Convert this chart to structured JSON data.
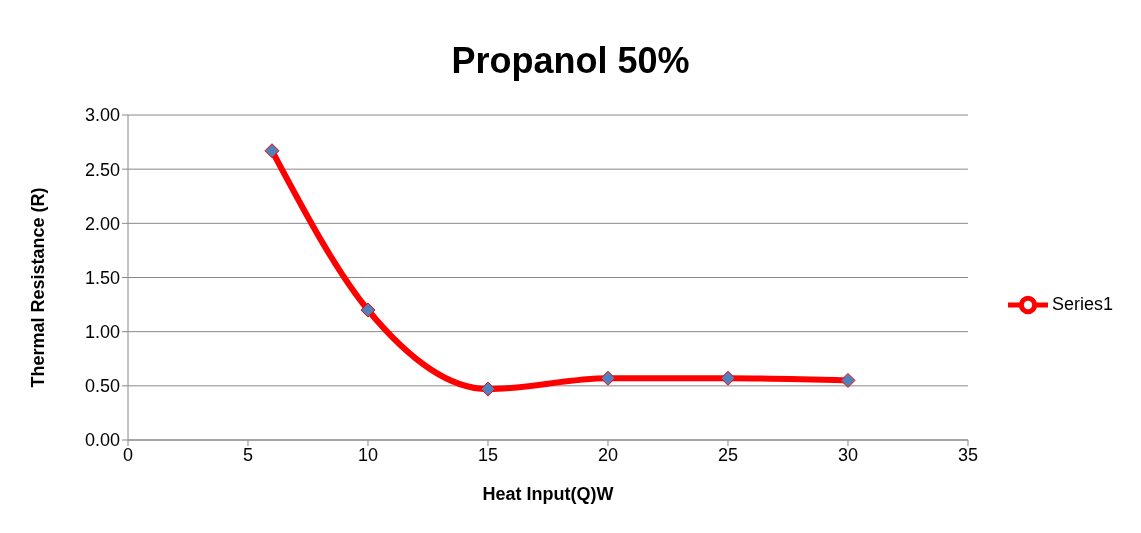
{
  "chart_data": {
    "type": "line",
    "title": "Propanol 50%",
    "xlabel": "Heat Input(Q)W",
    "ylabel": "Thermal Resistance (R)",
    "x": [
      6,
      10,
      15,
      20,
      25,
      30
    ],
    "series": [
      {
        "name": "Series1",
        "color": "#ff0000",
        "values": [
          2.67,
          1.2,
          0.47,
          0.57,
          0.57,
          0.55
        ]
      }
    ],
    "xlim": [
      0,
      35
    ],
    "xticks": [
      0,
      5,
      10,
      15,
      20,
      25,
      30,
      35
    ],
    "ylim": [
      0,
      3
    ],
    "yticks": [
      {
        "value": 0,
        "label": "0.00"
      },
      {
        "value": 0.5,
        "label": "0.50"
      },
      {
        "value": 1,
        "label": "1.00"
      },
      {
        "value": 1.5,
        "label": "1.50"
      },
      {
        "value": 2,
        "label": "2.00"
      },
      {
        "value": 2.5,
        "label": "2.50"
      },
      {
        "value": 3,
        "label": "3.00"
      }
    ],
    "grid": "y",
    "legend": "right",
    "marker": "diamond",
    "line_style": "solid"
  }
}
